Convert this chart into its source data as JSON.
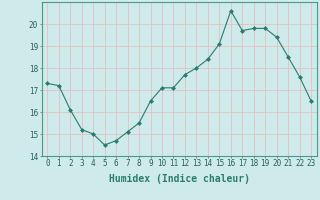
{
  "x": [
    0,
    1,
    2,
    3,
    4,
    5,
    6,
    7,
    8,
    9,
    10,
    11,
    12,
    13,
    14,
    15,
    16,
    17,
    18,
    19,
    20,
    21,
    22,
    23
  ],
  "y": [
    17.3,
    17.2,
    16.1,
    15.2,
    15.0,
    14.5,
    14.7,
    15.1,
    15.5,
    16.5,
    17.1,
    17.1,
    17.7,
    18.0,
    18.4,
    19.1,
    20.6,
    19.7,
    19.8,
    19.8,
    19.4,
    18.5,
    17.6,
    16.5
  ],
  "xlabel": "Humidex (Indice chaleur)",
  "ylim": [
    14,
    21
  ],
  "xlim": [
    -0.5,
    23.5
  ],
  "yticks": [
    14,
    15,
    16,
    17,
    18,
    19,
    20
  ],
  "xticks": [
    0,
    1,
    2,
    3,
    4,
    5,
    6,
    7,
    8,
    9,
    10,
    11,
    12,
    13,
    14,
    15,
    16,
    17,
    18,
    19,
    20,
    21,
    22,
    23
  ],
  "line_color": "#2a7d6e",
  "marker_color": "#2a7d6e",
  "bg_color": "#ceeaea",
  "grid_color": "#e8b8b8",
  "axis_bg": "#ceeaea",
  "tick_fontsize": 5.5,
  "xlabel_fontsize": 7,
  "xlabel_fontweight": "bold"
}
